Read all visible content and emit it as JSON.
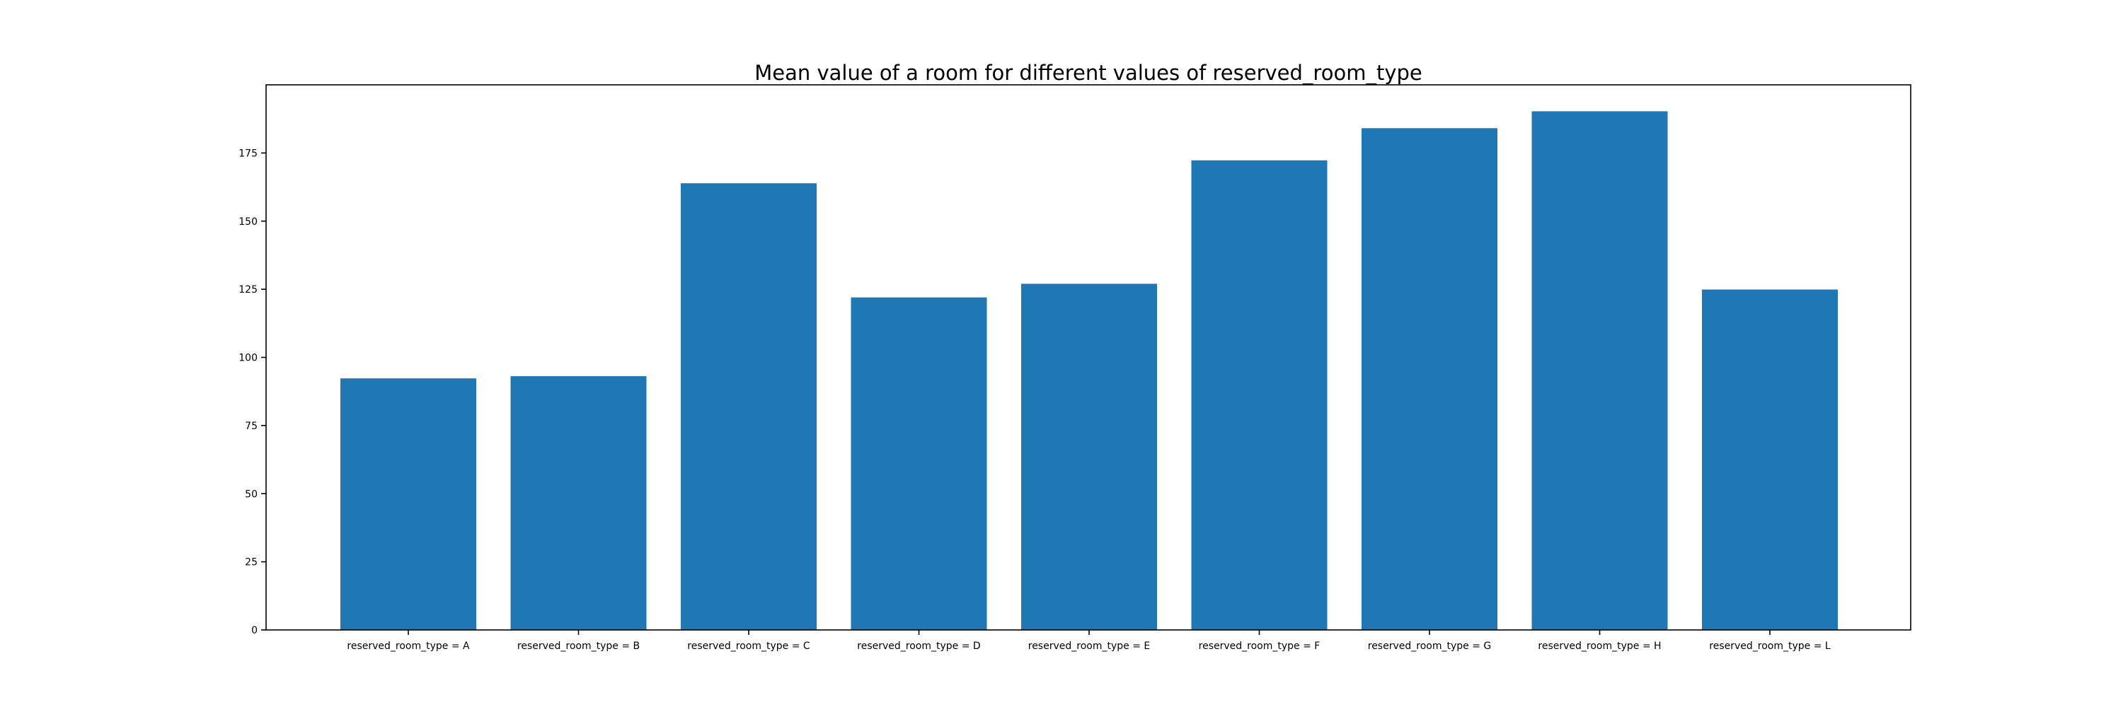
{
  "chart_data": {
    "type": "bar",
    "title": "Mean value of a room for different values of reserved_room_type",
    "xlabel": "",
    "ylabel": "",
    "categories": [
      "reserved_room_type = A",
      "reserved_room_type = B",
      "reserved_room_type = C",
      "reserved_room_type = D",
      "reserved_room_type = E",
      "reserved_room_type = F",
      "reserved_room_type = G",
      "reserved_room_type = H",
      "reserved_room_type = L"
    ],
    "values": [
      92.3,
      93.1,
      163.9,
      122.0,
      127.0,
      172.3,
      184.1,
      190.3,
      124.9
    ],
    "ylim": [
      0,
      200
    ],
    "yticks": [
      0,
      25,
      50,
      75,
      100,
      125,
      150,
      175
    ],
    "grid": false,
    "legend": "none",
    "bar_color": "#1f77b4"
  }
}
